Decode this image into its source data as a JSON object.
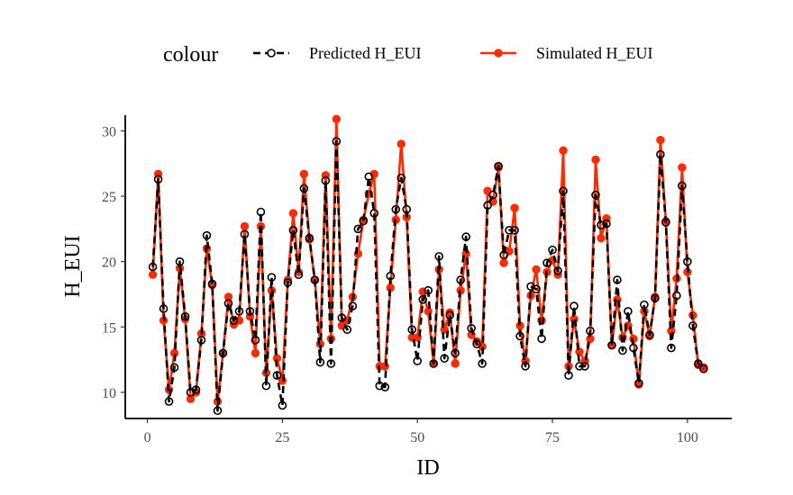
{
  "chart_data": {
    "type": "line",
    "xlabel": "ID",
    "ylabel": "H_EUI",
    "xlim": [
      -4.1,
      108.2
    ],
    "ylim": [
      8.0,
      31.2
    ],
    "x_ticks": [
      0,
      25,
      50,
      75,
      100
    ],
    "y_ticks": [
      10,
      15,
      20,
      25,
      30
    ],
    "grid": false,
    "legend": {
      "title": "colour",
      "position": "top",
      "entries": [
        "Predicted H_EUI",
        "Simulated H_EUI"
      ]
    },
    "colors": {
      "predicted": "#000000",
      "simulated": "#ff2a00",
      "axis": "#000000",
      "tick_text": "#4d4d4d"
    },
    "x": [
      1,
      2,
      3,
      4,
      5,
      6,
      7,
      8,
      9,
      10,
      11,
      12,
      13,
      14,
      15,
      16,
      17,
      18,
      19,
      20,
      21,
      22,
      23,
      24,
      25,
      26,
      27,
      28,
      29,
      30,
      31,
      32,
      33,
      34,
      35,
      36,
      37,
      38,
      39,
      40,
      41,
      42,
      43,
      44,
      45,
      46,
      47,
      48,
      49,
      50,
      51,
      52,
      53,
      54,
      55,
      56,
      57,
      58,
      59,
      60,
      61,
      62,
      63,
      64,
      65,
      66,
      67,
      68,
      69,
      70,
      71,
      72,
      73,
      74,
      75,
      76,
      77,
      78,
      79,
      80,
      81,
      82,
      83,
      84,
      85,
      86,
      87,
      88,
      89,
      90,
      91,
      92,
      93,
      94,
      95,
      96,
      97,
      98,
      99,
      100,
      101,
      102,
      103
    ],
    "series": [
      {
        "name": "Predicted H_EUI",
        "style": "dashed-open-circles",
        "values": [
          19.6,
          26.3,
          16.4,
          9.3,
          11.9,
          20.0,
          15.8,
          10.0,
          10.2,
          14.0,
          22.0,
          18.3,
          8.6,
          13.0,
          16.8,
          15.5,
          16.2,
          22.1,
          16.2,
          14.0,
          23.8,
          10.5,
          18.8,
          11.3,
          9.0,
          18.4,
          22.4,
          19.0,
          25.6,
          21.8,
          18.6,
          12.3,
          26.2,
          12.2,
          29.2,
          15.7,
          14.8,
          16.6,
          22.5,
          23.1,
          26.5,
          23.7,
          10.5,
          10.4,
          18.9,
          24.0,
          26.4,
          24.0,
          14.8,
          12.4,
          17.1,
          17.8,
          12.2,
          20.4,
          12.6,
          15.9,
          13.0,
          18.6,
          21.9,
          14.9,
          13.7,
          12.2,
          24.3,
          25.1,
          27.3,
          20.5,
          22.4,
          22.4,
          14.3,
          12.0,
          18.1,
          17.9,
          14.1,
          19.9,
          20.9,
          19.3,
          25.4,
          11.3,
          16.6,
          12.0,
          12.0,
          14.7,
          25.1,
          22.8,
          22.9,
          13.6,
          18.6,
          13.2,
          16.2,
          13.4,
          10.7,
          16.7,
          14.4,
          17.2,
          28.2,
          23.0,
          13.4,
          17.4,
          25.8,
          20.0,
          15.1,
          12.2,
          11.8
        ]
      },
      {
        "name": "Simulated H_EUI",
        "style": "solid-filled-circles",
        "values": [
          19.0,
          26.7,
          15.5,
          10.2,
          13.0,
          19.5,
          15.6,
          9.5,
          10.0,
          14.5,
          21.0,
          18.2,
          9.3,
          13.0,
          17.3,
          15.2,
          15.5,
          22.7,
          15.8,
          13.0,
          22.7,
          11.5,
          17.8,
          12.6,
          10.9,
          18.6,
          23.7,
          19.2,
          26.7,
          21.7,
          18.6,
          13.7,
          26.6,
          14.1,
          30.9,
          15.1,
          15.5,
          17.3,
          20.6,
          23.2,
          25.2,
          26.7,
          12.0,
          12.0,
          18.0,
          23.2,
          29.0,
          23.4,
          14.2,
          14.2,
          17.7,
          16.2,
          12.2,
          19.4,
          14.8,
          16.1,
          12.2,
          17.8,
          20.6,
          14.4,
          13.9,
          13.5,
          25.4,
          24.6,
          27.2,
          19.9,
          20.8,
          24.1,
          15.1,
          12.4,
          17.4,
          19.4,
          15.5,
          19.2,
          20.1,
          19.0,
          28.5,
          12.0,
          15.6,
          13.1,
          12.4,
          14.1,
          27.8,
          21.8,
          23.3,
          13.6,
          17.1,
          14.2,
          15.1,
          14.1,
          10.6,
          16.2,
          14.3,
          17.3,
          29.3,
          23.1,
          14.7,
          18.7,
          27.2,
          19.2,
          15.9,
          12.1,
          11.9
        ]
      }
    ]
  }
}
